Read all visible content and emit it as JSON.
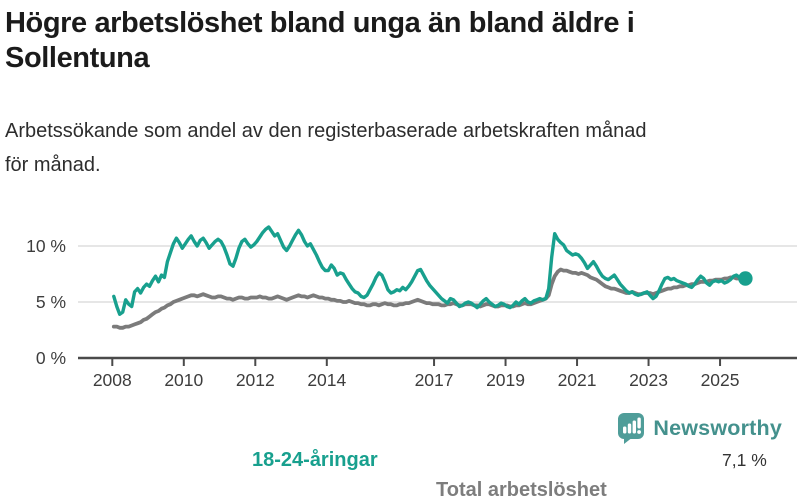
{
  "header": {
    "title": "Högre arbetslöshet bland unga än bland äldre i Sollentuna",
    "title_lines": [
      "Högre arbetslöshet bland unga än bland äldre i",
      "Sollentuna"
    ],
    "subtitle": "Arbetssökande som andel av den registerbaserade arbetskraften månad för månad.",
    "subtitle_lines": [
      "Arbetssökande som andel av den registerbaserade arbetskraften månad",
      "för månad."
    ]
  },
  "footer": {
    "brand": "Newsworthy",
    "logo_icon": "bar-chart-speech-bubble",
    "brand_color": "#44918d",
    "bubble_color": "#4f9d99"
  },
  "chart_data": {
    "type": "line",
    "title": "Högre arbetslöshet bland unga än bland äldre i Sollentuna",
    "subtitle": "Arbetssökande som andel av den registerbaserade arbetskraften månad för månad.",
    "unit": "%",
    "frequency": "monthly",
    "x_start": "2008-01",
    "x_end": "2025-09",
    "grid": "horizontal-only",
    "legend_position": "inline-labels",
    "x_axis": {
      "ticks": [
        2008,
        2010,
        2012,
        2014,
        2017,
        2019,
        2021,
        2023,
        2025
      ]
    },
    "y_axis": {
      "ticks": [
        {
          "value": 0,
          "label": "0 %"
        },
        {
          "value": 5,
          "label": "5 %"
        },
        {
          "value": 10,
          "label": "10 %"
        }
      ],
      "range": [
        0,
        12.5
      ]
    },
    "end_annotation": {
      "label": "7,1 %",
      "value": 7.1,
      "series": "18-24-åringar"
    },
    "series": [
      {
        "name": "18-24-åringar",
        "color": "#18a08e",
        "width": 3.4,
        "end_dot": true,
        "values": [
          5.5,
          4.6,
          3.9,
          4.1,
          5.2,
          4.8,
          4.6,
          5.9,
          6.2,
          5.8,
          6.3,
          6.6,
          6.4,
          6.9,
          7.3,
          6.8,
          7.4,
          7.2,
          8.6,
          9.4,
          10.2,
          10.7,
          10.3,
          9.8,
          10.2,
          10.6,
          10.9,
          10.4,
          10.0,
          10.5,
          10.7,
          10.3,
          9.8,
          10.1,
          10.4,
          10.6,
          10.4,
          9.9,
          9.2,
          8.4,
          8.2,
          8.9,
          9.8,
          10.4,
          10.6,
          10.2,
          9.9,
          10.1,
          10.4,
          10.8,
          11.2,
          11.5,
          11.7,
          11.3,
          10.9,
          11.1,
          10.5,
          9.9,
          9.6,
          10.0,
          10.5,
          11.0,
          11.4,
          11.0,
          10.4,
          10.0,
          10.2,
          9.7,
          9.2,
          8.6,
          8.1,
          7.8,
          7.8,
          8.3,
          8.0,
          7.4,
          7.6,
          7.5,
          7.0,
          6.6,
          6.2,
          5.9,
          5.8,
          5.5,
          5.4,
          5.6,
          6.1,
          6.6,
          7.2,
          7.6,
          7.4,
          6.8,
          6.1,
          5.8,
          5.9,
          6.1,
          6.0,
          6.3,
          6.1,
          6.4,
          6.8,
          7.3,
          7.8,
          7.9,
          7.4,
          6.9,
          6.5,
          6.2,
          5.9,
          5.6,
          5.3,
          5.1,
          4.9,
          5.3,
          5.2,
          4.9,
          4.6,
          4.7,
          4.9,
          5.0,
          4.9,
          4.7,
          4.5,
          4.8,
          5.1,
          5.3,
          5.0,
          4.8,
          4.6,
          4.7,
          4.9,
          4.8,
          4.6,
          4.5,
          4.7,
          5.0,
          4.8,
          5.1,
          5.3,
          5.0,
          4.9,
          5.1,
          5.2,
          5.3,
          5.2,
          5.3,
          6.2,
          9.0,
          11.1,
          10.6,
          10.3,
          10.1,
          9.6,
          9.4,
          9.2,
          9.3,
          9.2,
          8.9,
          8.5,
          8.0,
          8.3,
          8.6,
          8.2,
          7.7,
          7.3,
          7.1,
          7.0,
          7.2,
          7.4,
          7.0,
          6.6,
          6.3,
          6.0,
          5.8,
          5.9,
          5.7,
          5.6,
          5.7,
          5.8,
          5.9,
          5.6,
          5.3,
          5.5,
          6.0,
          6.6,
          7.1,
          7.2,
          7.0,
          7.1,
          6.9,
          6.8,
          6.7,
          6.6,
          6.4,
          6.3,
          6.6,
          7.0,
          7.3,
          7.1,
          6.7,
          6.5,
          6.8,
          6.9,
          6.8,
          6.9,
          6.7,
          6.8,
          7.0,
          7.3,
          7.4,
          7.2,
          7.1,
          7.1
        ]
      },
      {
        "name": "Total arbetslöshet",
        "color": "#7b7b7b",
        "width": 3.8,
        "end_dot": false,
        "values": [
          2.8,
          2.8,
          2.7,
          2.7,
          2.8,
          2.8,
          2.9,
          3.0,
          3.1,
          3.2,
          3.4,
          3.5,
          3.7,
          3.9,
          4.1,
          4.2,
          4.4,
          4.5,
          4.7,
          4.8,
          5.0,
          5.1,
          5.2,
          5.3,
          5.4,
          5.5,
          5.6,
          5.6,
          5.5,
          5.6,
          5.7,
          5.6,
          5.5,
          5.4,
          5.4,
          5.5,
          5.5,
          5.4,
          5.3,
          5.3,
          5.2,
          5.3,
          5.4,
          5.4,
          5.3,
          5.3,
          5.4,
          5.4,
          5.4,
          5.5,
          5.4,
          5.4,
          5.3,
          5.3,
          5.4,
          5.5,
          5.4,
          5.3,
          5.2,
          5.3,
          5.4,
          5.5,
          5.6,
          5.5,
          5.5,
          5.4,
          5.5,
          5.6,
          5.5,
          5.4,
          5.4,
          5.3,
          5.3,
          5.2,
          5.2,
          5.1,
          5.1,
          5.0,
          5.0,
          5.1,
          5.0,
          4.9,
          4.9,
          4.8,
          4.8,
          4.7,
          4.7,
          4.8,
          4.8,
          4.7,
          4.8,
          4.9,
          4.8,
          4.8,
          4.7,
          4.7,
          4.8,
          4.8,
          4.9,
          4.9,
          5.0,
          5.1,
          5.2,
          5.1,
          5.0,
          4.9,
          4.9,
          4.8,
          4.8,
          4.8,
          4.7,
          4.7,
          4.8,
          4.8,
          4.9,
          4.8,
          4.7,
          4.7,
          4.8,
          4.8,
          4.8,
          4.7,
          4.7,
          4.6,
          4.7,
          4.8,
          4.8,
          4.7,
          4.6,
          4.6,
          4.7,
          4.7,
          4.7,
          4.6,
          4.6,
          4.7,
          4.7,
          4.8,
          4.9,
          4.8,
          4.8,
          4.9,
          5.0,
          5.1,
          5.2,
          5.3,
          5.6,
          6.6,
          7.3,
          7.7,
          7.9,
          7.8,
          7.8,
          7.7,
          7.6,
          7.6,
          7.5,
          7.6,
          7.5,
          7.4,
          7.2,
          7.1,
          7.0,
          6.8,
          6.6,
          6.4,
          6.3,
          6.2,
          6.2,
          6.1,
          6.0,
          5.9,
          5.8,
          5.8,
          5.9,
          5.8,
          5.7,
          5.7,
          5.8,
          5.8,
          5.8,
          5.7,
          5.8,
          5.9,
          6.0,
          6.1,
          6.2,
          6.2,
          6.3,
          6.3,
          6.4,
          6.4,
          6.5,
          6.5,
          6.6,
          6.6,
          6.7,
          6.8,
          6.8,
          6.8,
          6.9,
          6.9,
          7.0,
          7.0,
          7.0,
          7.1,
          7.1,
          7.2,
          7.2,
          7.1,
          7.1,
          7.0,
          7.0
        ]
      }
    ]
  }
}
